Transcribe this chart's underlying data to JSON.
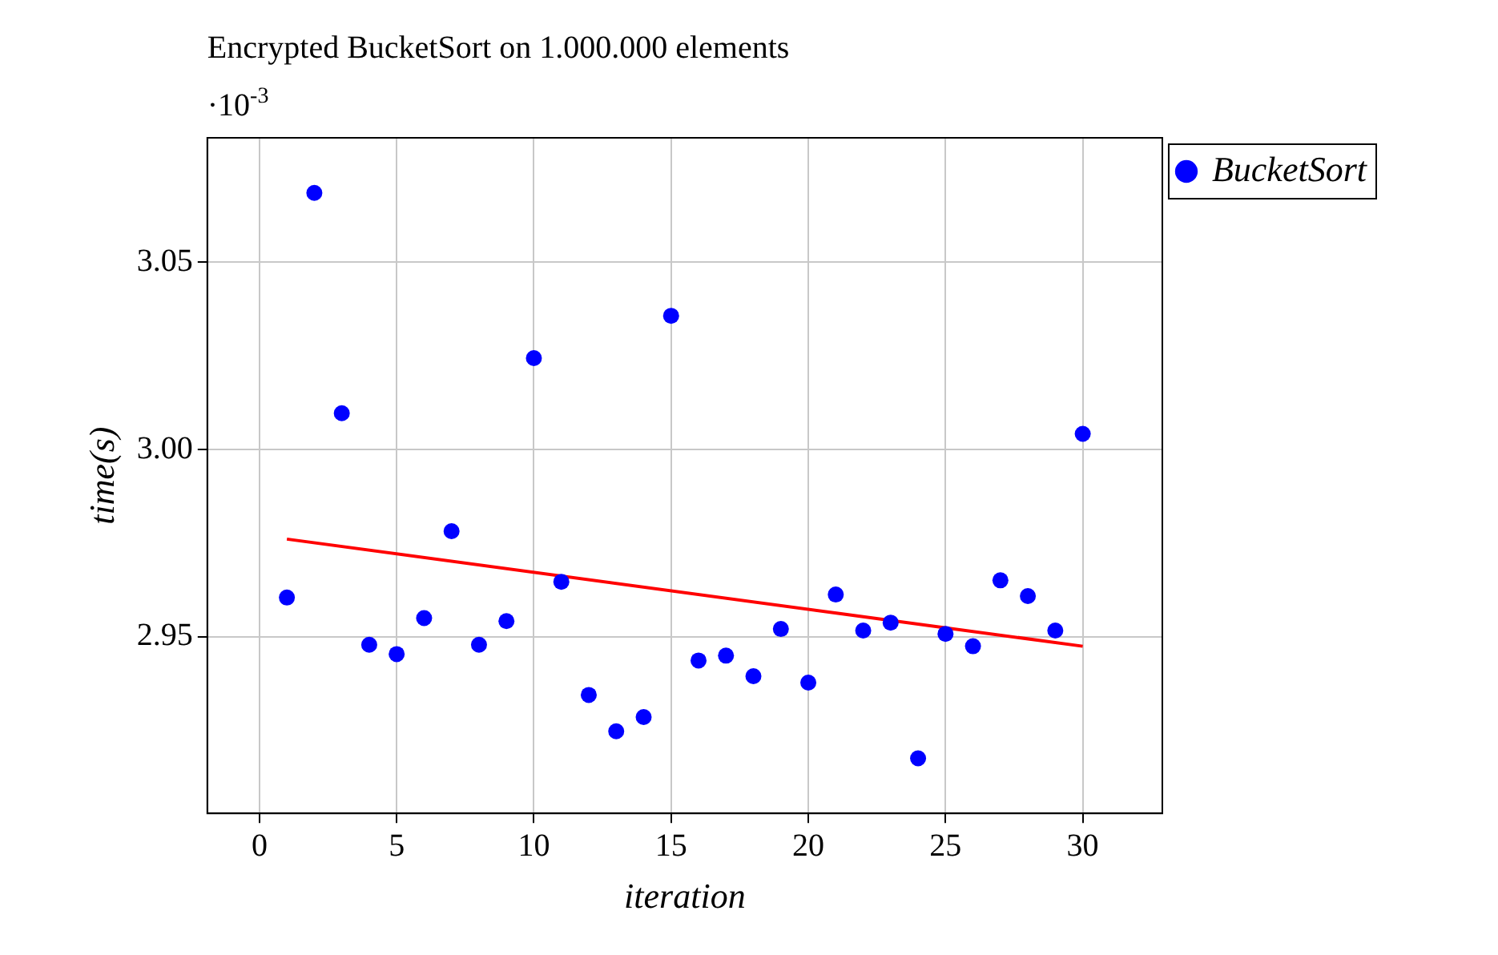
{
  "chart_data": {
    "type": "scatter",
    "title": "Encrypted BucketSort on 1.000.000 elements",
    "xlabel": "iteration",
    "ylabel": "time(s)",
    "annotations": [
      "·10$^{-3}$"
    ],
    "x": [
      1,
      2,
      3,
      4,
      5,
      6,
      7,
      8,
      9,
      10,
      11,
      12,
      13,
      14,
      15,
      16,
      17,
      18,
      19,
      20,
      21,
      22,
      23,
      24,
      25,
      26,
      27,
      28,
      29,
      30
    ],
    "series": [
      {
        "name": "BucketSort",
        "color": "#0000ff",
        "values": [
          2.9605,
          3.0685,
          3.0097,
          2.9479,
          2.9454,
          2.955,
          2.9782,
          2.9479,
          2.9542,
          3.0244,
          2.9647,
          2.9345,
          2.9248,
          2.9286,
          3.0357,
          2.9437,
          2.945,
          2.9395,
          2.9521,
          2.9378,
          2.9613,
          2.9517,
          2.9538,
          2.9176,
          2.9508,
          2.9475,
          2.9651,
          2.9609,
          2.9517,
          3.0042
        ]
      },
      {
        "type": "line",
        "color": "#ff0000",
        "x": [
          1,
          30
        ],
        "values": [
          2.9761,
          2.9475
        ],
        "marker": "none"
      }
    ],
    "xlim": [
      -1.9,
      32.9
    ],
    "xticks": [
      0,
      5,
      10,
      15,
      20,
      25,
      30
    ],
    "ylim": [
      2.9029,
      3.0832
    ],
    "yticks": [
      {
        "value": 2.95,
        "label": "2.95"
      },
      {
        "value": 3.0,
        "label": "3.00"
      },
      {
        "value": 3.05,
        "label": "3.05"
      }
    ],
    "grid": true,
    "legend": "top right",
    "marker": "circle"
  }
}
